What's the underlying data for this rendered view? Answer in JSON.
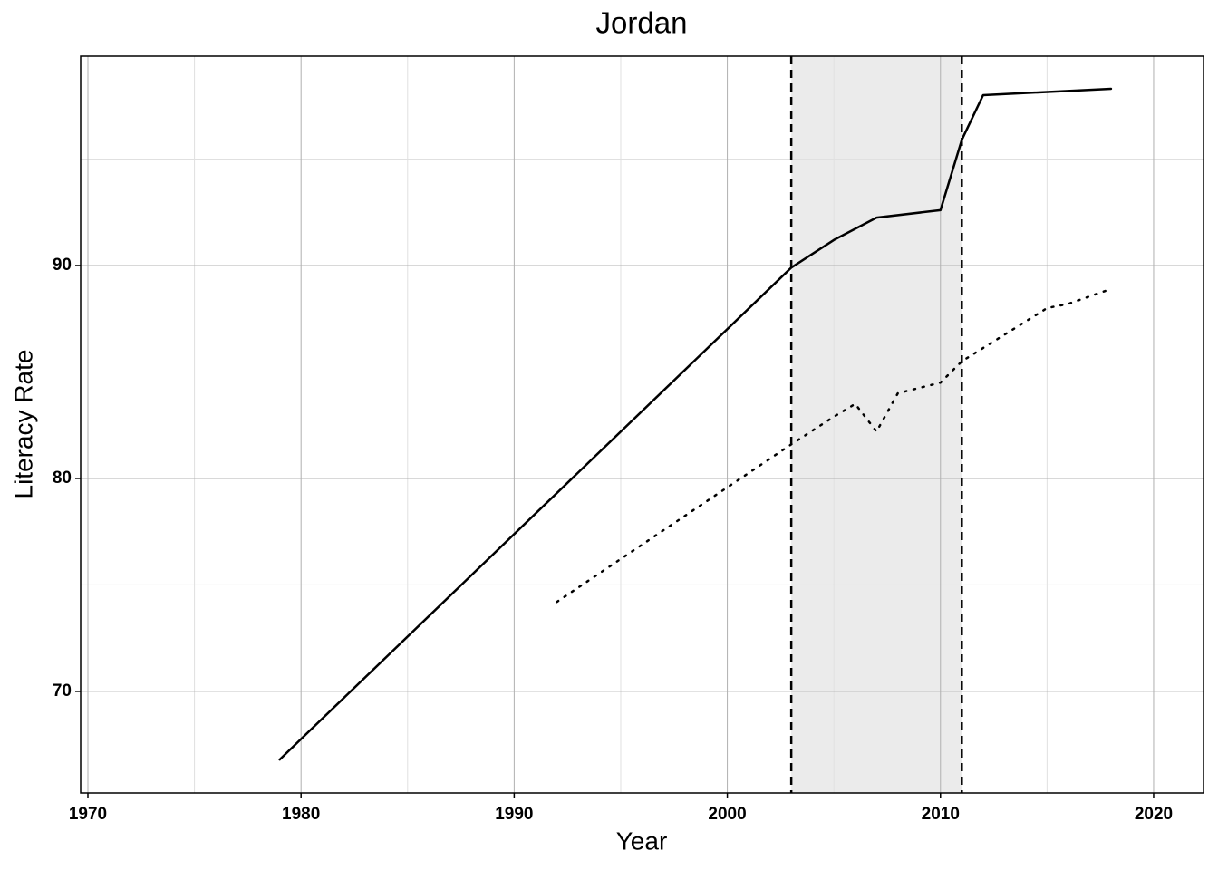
{
  "chart_data": {
    "type": "line",
    "title": "Jordan",
    "x_label": "Year",
    "y_label": "Literacy Rate",
    "series": [
      {
        "color": "#000000",
        "style": "solid",
        "x": [
          1979,
          2003,
          2005,
          2007,
          2010,
          2011,
          2012,
          2018
        ],
        "values": [
          66.8,
          89.9,
          91.2,
          92.25,
          92.6,
          95.9,
          98.0,
          98.3
        ]
      },
      {
        "color": "#000000",
        "style": "dotted",
        "x": [
          1992,
          2003,
          2005,
          2006,
          2007,
          2008,
          2010,
          2011,
          2015,
          2016,
          2018
        ],
        "values": [
          74.2,
          81.6,
          82.9,
          83.5,
          82.2,
          84.0,
          84.5,
          85.5,
          88.0,
          88.2,
          88.9
        ]
      }
    ],
    "shade": [
      2003,
      2011
    ],
    "shade_color": "#ebebeb",
    "xlim": [
      1969.66,
      2022.34
    ],
    "ylim": [
      65.23,
      99.83
    ],
    "xticks": [
      1970,
      1980,
      1990,
      2000,
      2010,
      2020
    ],
    "yticks": [
      70,
      80,
      90
    ],
    "grid": true
  }
}
